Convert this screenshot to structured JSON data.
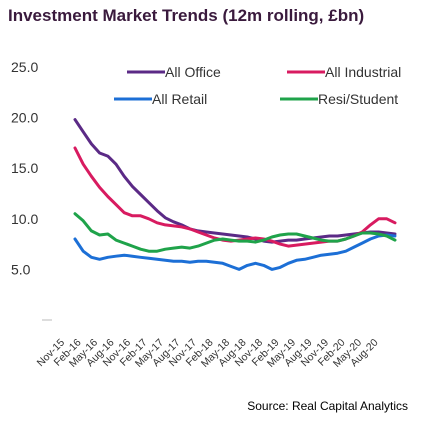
{
  "chart_data": {
    "type": "line",
    "title": "Investment Market Trends (12m rolling, £bn)",
    "source": "Source: Real Capital Analytics",
    "xlabel": "",
    "ylabel": "",
    "ylim": [
      0,
      25
    ],
    "yticks": [
      "25.0",
      "20.0",
      "15.0",
      "10.0",
      "5.0"
    ],
    "ytick_values": [
      25,
      20,
      15,
      10,
      5
    ],
    "x_tick_labels": [
      "Nov",
      "Feb",
      "May",
      "Aug",
      "Nov",
      "Feb",
      "May",
      "Aug",
      "Nov",
      "Feb",
      "May",
      "Aug",
      "Nov",
      "Feb",
      "May",
      "Aug",
      "Nov",
      "Feb",
      "May",
      "Aug"
    ],
    "x_tick_years": [
      "15",
      "16",
      "16",
      "16",
      "16",
      "17",
      "17",
      "17",
      "17",
      "18",
      "18",
      "18",
      "18",
      "19",
      "19",
      "19",
      "19",
      "20",
      "20",
      "20"
    ],
    "legend_position": "top",
    "grid": false,
    "series": [
      {
        "name": "All Office",
        "color": "#5b2a86",
        "values": [
          19.8,
          18.6,
          17.4,
          16.5,
          16.2,
          15.4,
          14.2,
          13.2,
          12.4,
          11.6,
          10.8,
          10.1,
          9.7,
          9.4,
          9.0,
          8.8,
          8.7,
          8.6,
          8.5,
          8.4,
          8.3,
          8.2,
          8.0,
          7.8,
          7.7,
          7.8,
          7.9,
          7.9,
          8.0,
          8.1,
          8.2,
          8.3,
          8.3,
          8.4,
          8.5,
          8.6,
          8.7,
          8.7,
          8.6,
          8.5
        ]
      },
      {
        "name": "All Industrial",
        "color": "#d81b60",
        "values": [
          17.0,
          15.4,
          14.2,
          13.1,
          12.2,
          11.4,
          10.6,
          10.3,
          10.3,
          10.0,
          9.6,
          9.4,
          9.3,
          9.2,
          9.0,
          8.7,
          8.4,
          8.1,
          7.9,
          7.8,
          7.9,
          8.0,
          8.1,
          8.0,
          7.8,
          7.5,
          7.3,
          7.4,
          7.5,
          7.6,
          7.7,
          7.8,
          7.8,
          8.0,
          8.3,
          8.7,
          9.4,
          10.0,
          10.0,
          9.6
        ]
      },
      {
        "name": "All Retail",
        "color": "#1c6fd6",
        "values": [
          8.0,
          6.8,
          6.2,
          6.0,
          6.2,
          6.3,
          6.4,
          6.3,
          6.2,
          6.1,
          6.0,
          5.9,
          5.8,
          5.8,
          5.7,
          5.8,
          5.8,
          5.7,
          5.6,
          5.3,
          5.0,
          5.4,
          5.6,
          5.4,
          5.0,
          5.2,
          5.6,
          5.9,
          6.0,
          6.2,
          6.4,
          6.5,
          6.6,
          6.8,
          7.2,
          7.6,
          8.0,
          8.3,
          8.4,
          8.3
        ]
      },
      {
        "name": "Resi/Student",
        "color": "#1fa34a",
        "values": [
          10.5,
          9.8,
          8.8,
          8.4,
          8.5,
          7.9,
          7.6,
          7.3,
          7.0,
          6.8,
          6.8,
          7.0,
          7.1,
          7.2,
          7.1,
          7.3,
          7.6,
          7.9,
          8.0,
          7.9,
          7.8,
          7.8,
          7.7,
          7.9,
          8.2,
          8.4,
          8.5,
          8.5,
          8.3,
          8.1,
          7.9,
          7.8,
          7.8,
          8.0,
          8.3,
          8.6,
          8.6,
          8.5,
          8.3,
          7.9
        ]
      }
    ]
  }
}
